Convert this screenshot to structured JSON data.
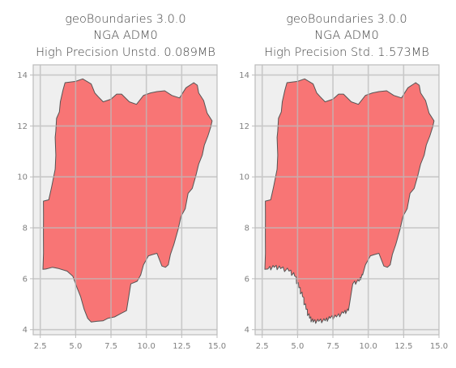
{
  "panels": [
    {
      "title_lines": [
        "geoBoundaries 3.0.0",
        "NGA ADM0",
        "High Precision Unstd. 0.089MB"
      ],
      "detailed_coast": false
    },
    {
      "title_lines": [
        "geoBoundaries 3.0.0",
        "NGA ADM0",
        "High Precision Std. 1.573MB"
      ],
      "detailed_coast": true
    }
  ],
  "axes": {
    "x_ticks": [
      2.5,
      5.0,
      7.5,
      10.0,
      12.5,
      15.0
    ],
    "x_tick_labels": [
      "2.5",
      "5.0",
      "7.5",
      "10.0",
      "12.5",
      "15.0"
    ],
    "y_ticks": [
      4,
      6,
      8,
      10,
      12,
      14
    ],
    "y_tick_labels": [
      "4",
      "6",
      "8",
      "10",
      "12",
      "14"
    ],
    "xlim": [
      2.0,
      15.0
    ],
    "ylim": [
      3.8,
      14.4
    ]
  },
  "colors": {
    "fill": "#f87575",
    "edge": "#555555",
    "background": "#efefef",
    "grid": "#bcbcbc"
  },
  "outline_lonlat": [
    [
      2.69,
      6.37
    ],
    [
      2.73,
      7.0
    ],
    [
      2.72,
      7.7
    ],
    [
      2.73,
      8.5
    ],
    [
      2.72,
      9.05
    ],
    [
      3.1,
      9.1
    ],
    [
      3.3,
      9.6
    ],
    [
      3.55,
      10.3
    ],
    [
      3.6,
      10.85
    ],
    [
      3.55,
      11.55
    ],
    [
      3.6,
      11.8
    ],
    [
      3.65,
      12.3
    ],
    [
      3.85,
      12.55
    ],
    [
      3.92,
      12.95
    ],
    [
      4.1,
      13.4
    ],
    [
      4.25,
      13.7
    ],
    [
      5.0,
      13.75
    ],
    [
      5.5,
      13.85
    ],
    [
      6.1,
      13.65
    ],
    [
      6.35,
      13.3
    ],
    [
      6.6,
      13.15
    ],
    [
      6.95,
      12.95
    ],
    [
      7.5,
      13.05
    ],
    [
      7.9,
      13.25
    ],
    [
      8.25,
      13.25
    ],
    [
      8.8,
      12.95
    ],
    [
      9.3,
      12.85
    ],
    [
      9.8,
      13.2
    ],
    [
      10.3,
      13.3
    ],
    [
      10.75,
      13.35
    ],
    [
      11.3,
      13.38
    ],
    [
      11.8,
      13.2
    ],
    [
      12.35,
      13.1
    ],
    [
      12.8,
      13.5
    ],
    [
      13.35,
      13.7
    ],
    [
      13.6,
      13.6
    ],
    [
      13.7,
      13.3
    ],
    [
      14.05,
      13.0
    ],
    [
      14.3,
      12.5
    ],
    [
      14.65,
      12.2
    ],
    [
      14.55,
      11.95
    ],
    [
      14.35,
      11.6
    ],
    [
      14.1,
      11.25
    ],
    [
      13.95,
      10.85
    ],
    [
      13.7,
      10.5
    ],
    [
      13.5,
      10.05
    ],
    [
      13.25,
      9.55
    ],
    [
      12.95,
      9.35
    ],
    [
      12.75,
      8.75
    ],
    [
      12.45,
      8.45
    ],
    [
      12.25,
      7.95
    ],
    [
      11.95,
      7.35
    ],
    [
      11.7,
      6.95
    ],
    [
      11.55,
      6.55
    ],
    [
      11.35,
      6.45
    ],
    [
      11.1,
      6.5
    ],
    [
      10.75,
      7.0
    ],
    [
      10.45,
      6.95
    ],
    [
      10.15,
      6.9
    ],
    [
      9.8,
      6.55
    ],
    [
      9.6,
      6.15
    ],
    [
      9.35,
      5.9
    ],
    [
      8.9,
      5.8
    ],
    [
      8.6,
      4.75
    ],
    [
      8.25,
      4.65
    ],
    [
      7.75,
      4.5
    ],
    [
      7.3,
      4.45
    ],
    [
      6.95,
      4.35
    ],
    [
      6.5,
      4.33
    ],
    [
      6.1,
      4.3
    ],
    [
      5.85,
      4.45
    ],
    [
      5.6,
      4.8
    ],
    [
      5.35,
      5.3
    ],
    [
      5.1,
      5.65
    ],
    [
      4.8,
      6.1
    ],
    [
      4.4,
      6.3
    ],
    [
      3.8,
      6.4
    ],
    [
      3.35,
      6.45
    ],
    [
      2.9,
      6.38
    ]
  ]
}
